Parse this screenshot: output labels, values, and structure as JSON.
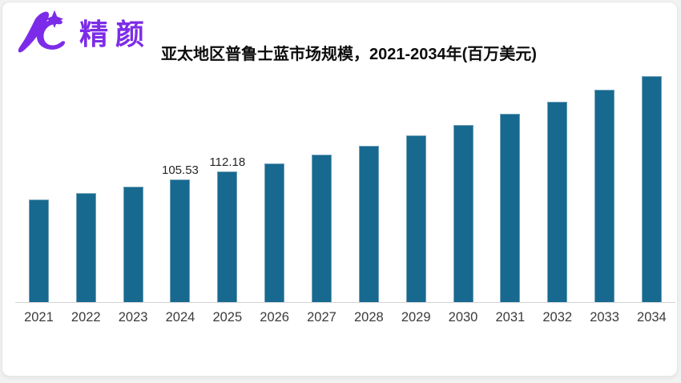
{
  "logo": {
    "brand_name": "精颜",
    "brand_color": "#7C2CE8"
  },
  "header": {
    "title": "亚太地区普鲁士蓝市场规模，2021-2034年(百万美元)"
  },
  "chart_data": {
    "type": "bar",
    "title": "亚太地区普鲁士蓝市场规模，2021-2034年(百万美元)",
    "categories": [
      "2021",
      "2022",
      "2023",
      "2024",
      "2025",
      "2026",
      "2027",
      "2028",
      "2029",
      "2030",
      "2031",
      "2032",
      "2033",
      "2034"
    ],
    "values": [
      88.0,
      93.5,
      99.3,
      105.53,
      112.18,
      119.2,
      126.8,
      134.8,
      143.3,
      152.3,
      161.9,
      172.1,
      183.0,
      194.5
    ],
    "data_labels": [
      null,
      null,
      null,
      "105.53",
      "112.18",
      null,
      null,
      null,
      null,
      null,
      null,
      null,
      null,
      null
    ],
    "xlabel": "",
    "ylabel": "",
    "ylim": [
      0,
      205
    ],
    "grid": false,
    "legend": false,
    "bar_color": "#17698F",
    "bar_border_color": "#6FA0B8",
    "axis_line_color": "#D4D4D4"
  }
}
